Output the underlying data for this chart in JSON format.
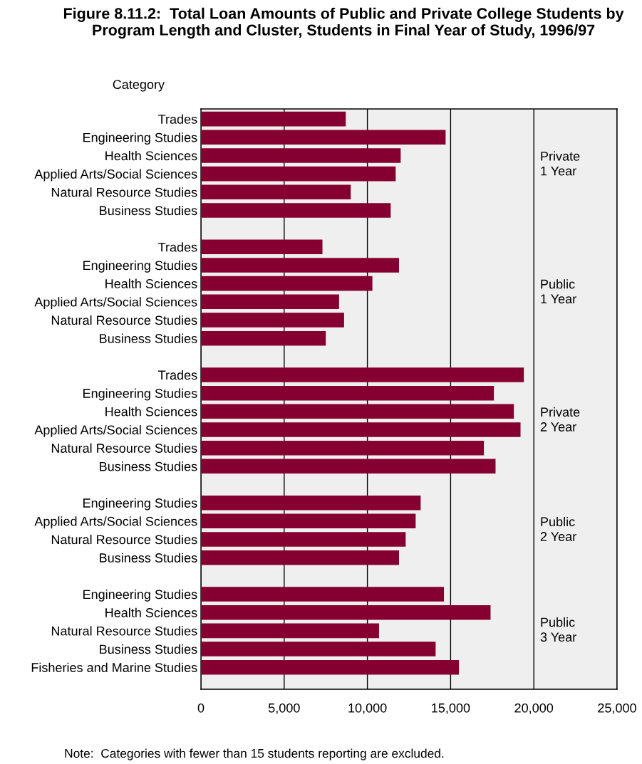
{
  "chart_data": {
    "type": "bar",
    "orientation": "horizontal",
    "title": "Figure 8.11.2:  Total Loan Amounts of Public and Private College Students by Program Length and Cluster, Students in Final Year of Study, 1996/97",
    "ylabel": "Category",
    "categories": [
      "Trades",
      "Engineering Studies",
      "Health Sciences",
      "Applied Arts/Social Sciences",
      "Natural Resource Studies",
      "Business Studies",
      null,
      "Trades",
      "Engineering Studies",
      "Health Sciences",
      "Applied Arts/Social Sciences",
      "Natural Resource Studies",
      "Business Studies",
      null,
      "Trades",
      "Engineering Studies",
      "Health Sciences",
      "Applied Arts/Social Sciences",
      "Natural Resource Studies",
      "Business Studies",
      null,
      "Engineering Studies",
      "Applied Arts/Social Sciences",
      "Natural Resource Studies",
      "Business Studies",
      null,
      "Engineering Studies",
      "Health Sciences",
      "Natural Resource Studies",
      "Business Studies",
      "Fisheries and Marine Studies"
    ],
    "values": [
      8700,
      14700,
      12000,
      11700,
      9000,
      11400,
      null,
      7300,
      11900,
      10300,
      8300,
      8600,
      7500,
      null,
      19400,
      17600,
      18800,
      19200,
      17000,
      17700,
      null,
      13200,
      12900,
      12300,
      11900,
      null,
      14600,
      17400,
      10700,
      14100,
      15500
    ],
    "color": "#850030",
    "xlim": [
      0,
      25000
    ],
    "xticks": [
      0,
      {
        "value": 5000,
        "label": "5,000"
      },
      {
        "value": 10000,
        "label": "10,000"
      },
      {
        "value": 15000,
        "label": "15,000"
      },
      {
        "value": 20000,
        "label": "20,000"
      },
      {
        "value": 25000,
        "label": "25,000"
      }
    ],
    "grid": "x",
    "annotations": [
      "Private\n1 Year",
      "Public\n1 Year",
      "Private\n2 Year",
      "Public\n2 Year",
      "Public\n3 Year",
      "Note:  Categories with fewer than 15 students reporting are excluded."
    ]
  }
}
